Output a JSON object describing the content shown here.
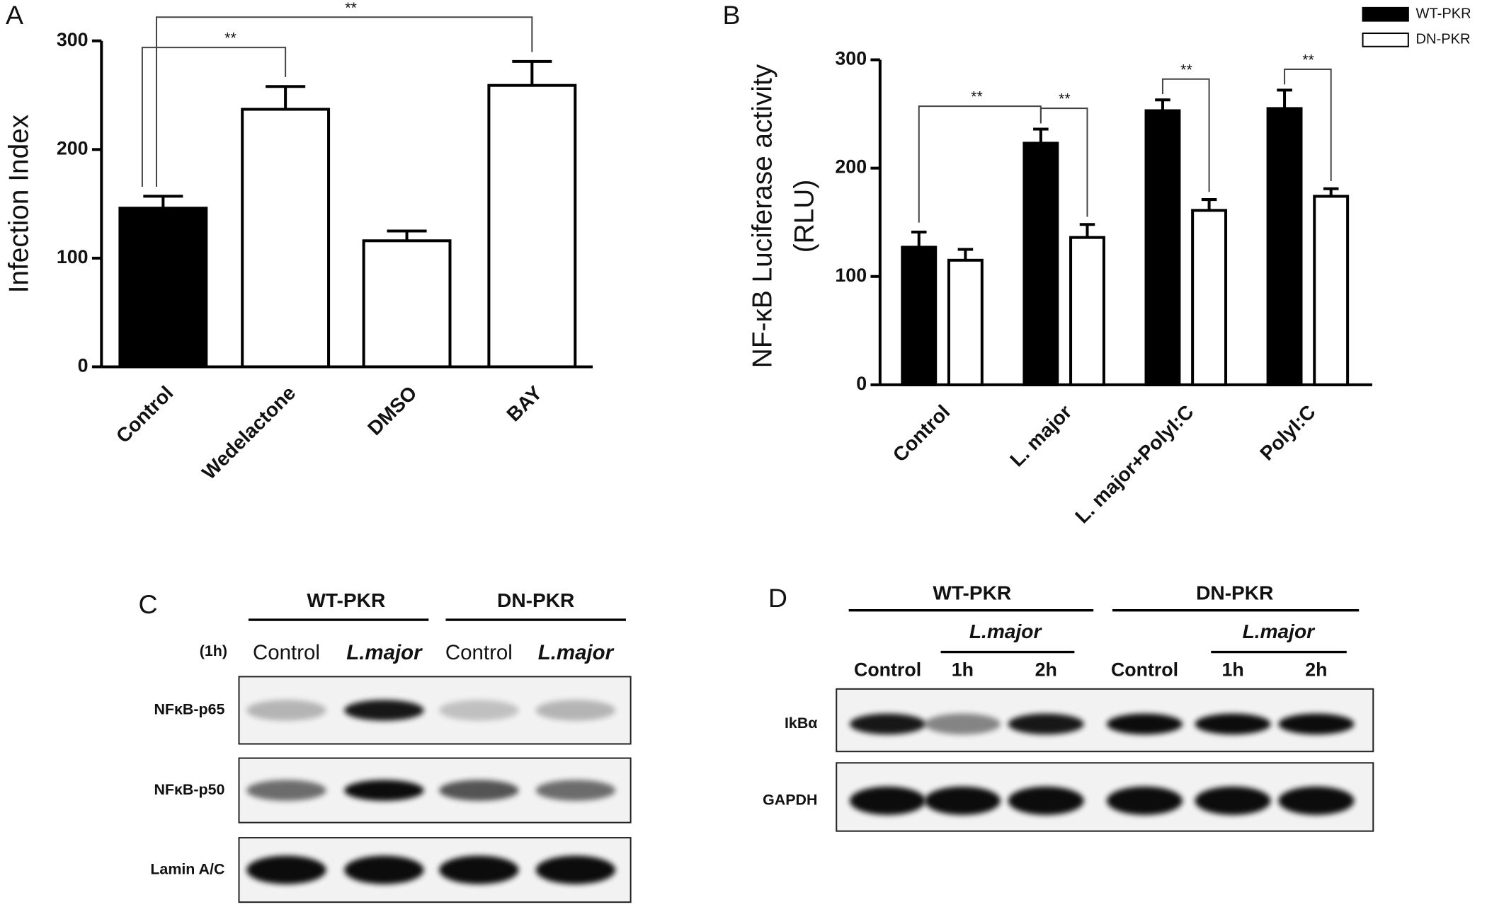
{
  "chart_data": [
    {
      "type": "bar",
      "panel": "A",
      "ylabel": "Infection Index",
      "categories": [
        "Control",
        "Wedelactone",
        "DMSO",
        "BAY"
      ],
      "values": [
        146,
        237,
        116,
        259
      ],
      "errors": [
        11,
        21,
        9,
        22
      ],
      "colors": [
        "#000000",
        "#ffffff",
        "#ffffff",
        "#ffffff"
      ],
      "ylim": [
        0,
        300
      ],
      "yticks": [
        0,
        100,
        200,
        300
      ],
      "annotations": [
        "**",
        "**"
      ]
    },
    {
      "type": "grouped_bar",
      "panel": "B",
      "ylabel": [
        "NF-κB Luciferase activity",
        "(RLU)"
      ],
      "categories": [
        "Control",
        "L. major",
        "L. major+PolyI:C",
        "PolyI:C"
      ],
      "series": [
        {
          "name": "WT-PKR",
          "color": "#000000",
          "values": [
            127,
            223,
            253,
            255
          ],
          "errors": [
            14,
            13,
            10,
            17
          ]
        },
        {
          "name": "DN-PKR",
          "color": "#ffffff",
          "values": [
            115,
            136,
            161,
            174
          ],
          "errors": [
            10,
            12,
            10,
            7
          ]
        }
      ],
      "ylim": [
        0,
        300
      ],
      "yticks": [
        0,
        100,
        200,
        300
      ],
      "legend": "upper right",
      "annotations": [
        "**",
        "**",
        "**",
        "**"
      ]
    }
  ],
  "blots": [
    {
      "panel": "C",
      "groups": [
        "WT-PKR",
        "DN-PKR"
      ],
      "time": "(1h)",
      "lanes": [
        "Control",
        "L.major",
        "Control",
        "L.major"
      ],
      "rows": [
        "NFκB-p65",
        "NFκB-p50",
        "Lamin A/C"
      ]
    },
    {
      "panel": "D",
      "groups": [
        "WT-PKR",
        "DN-PKR"
      ],
      "subgroups": [
        "L.major",
        "L.major"
      ],
      "lanes": [
        "Control",
        "1h",
        "2h",
        "Control",
        "1h",
        "2h"
      ],
      "rows": [
        "IkBα",
        "GAPDH"
      ]
    }
  ]
}
